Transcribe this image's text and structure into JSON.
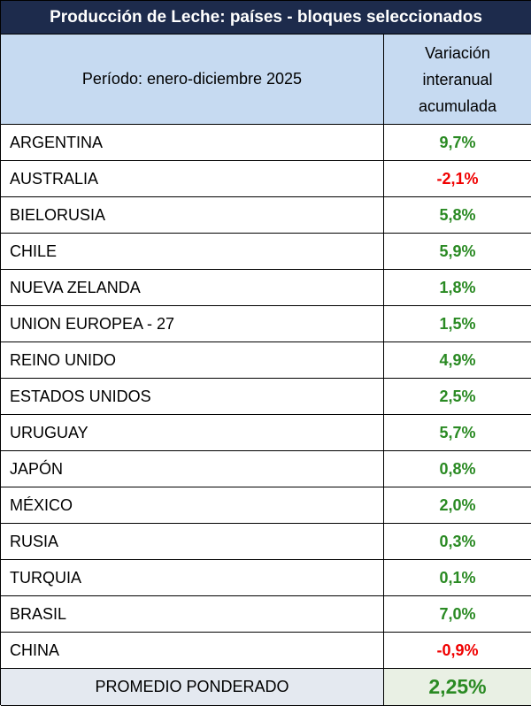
{
  "title": "Producción de Leche: países - bloques seleccionados",
  "header": {
    "period": "Período: enero-diciembre 2025",
    "variation": "Variación interanual acumulada"
  },
  "rows": [
    {
      "country": "ARGENTINA",
      "value": "9,7%"
    },
    {
      "country": "AUSTRALIA",
      "value": "-2,1%"
    },
    {
      "country": "BIELORUSIA",
      "value": "5,8%"
    },
    {
      "country": "CHILE",
      "value": "5,9%"
    },
    {
      "country": "NUEVA ZELANDA",
      "value": "1,8%"
    },
    {
      "country": "UNION EUROPEA - 27",
      "value": "1,5%"
    },
    {
      "country": "REINO UNIDO",
      "value": "4,9%"
    },
    {
      "country": "ESTADOS UNIDOS",
      "value": "2,5%"
    },
    {
      "country": "URUGUAY",
      "value": "5,7%"
    },
    {
      "country": "JAPÓN",
      "value": "0,8%"
    },
    {
      "country": "MÉXICO",
      "value": "2,0%"
    },
    {
      "country": "RUSIA",
      "value": "0,3%"
    },
    {
      "country": "TURQUIA",
      "value": "0,1%"
    },
    {
      "country": "BRASIL",
      "value": "7,0%"
    },
    {
      "country": "CHINA",
      "value": "-0,9%"
    }
  ],
  "footer": {
    "label": "PROMEDIO PONDERADO",
    "value": "2,25%"
  }
}
